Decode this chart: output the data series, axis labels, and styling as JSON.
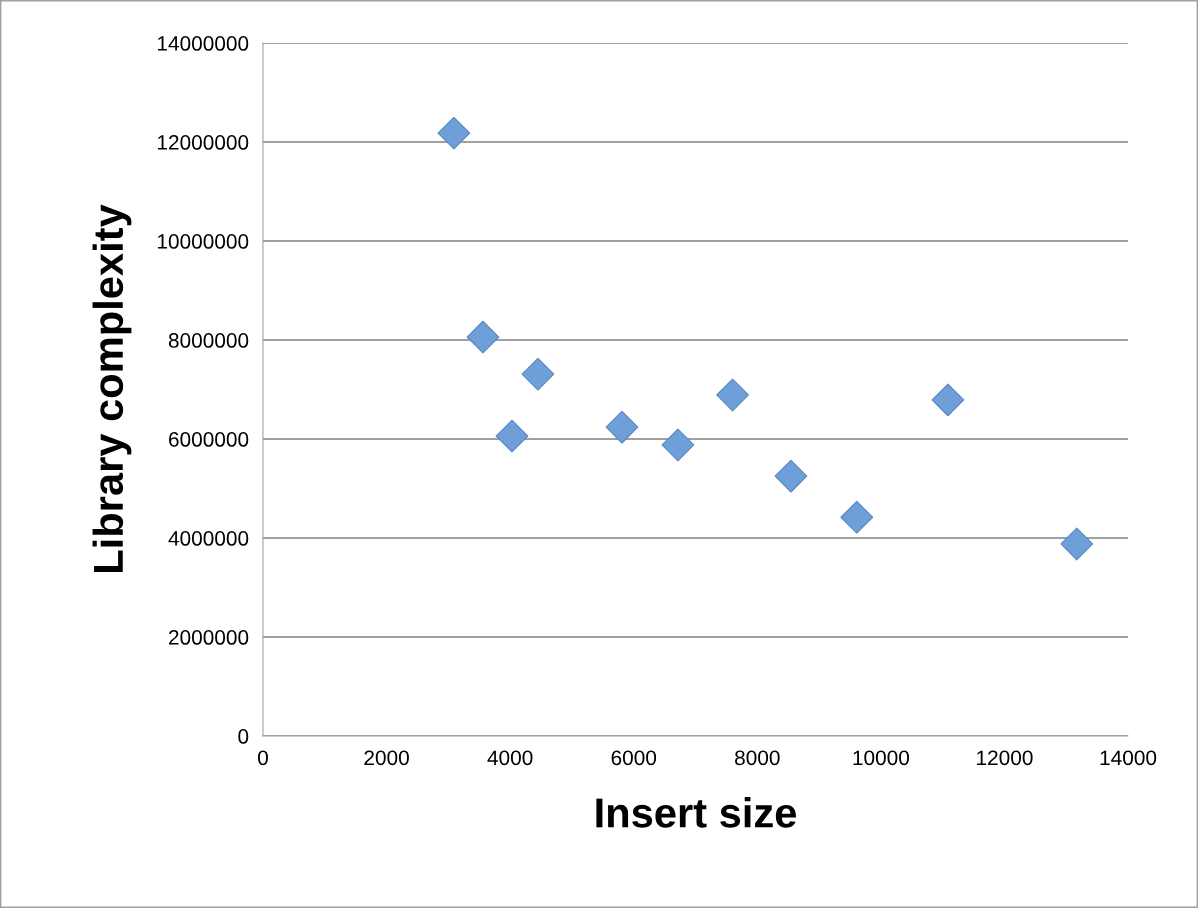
{
  "chart_data": {
    "type": "scatter",
    "xlabel": "Insert size",
    "ylabel": "Library complexity",
    "x": [
      3090,
      3560,
      4030,
      4450,
      5810,
      6715,
      7600,
      8545,
      9610,
      11085,
      13170
    ],
    "values": [
      12180000,
      8060000,
      6060000,
      7310000,
      6240000,
      5880000,
      6890000,
      5250000,
      4420000,
      6790000,
      3880000
    ],
    "color": "#6f9fd8",
    "marker": "diamond",
    "grid": "y",
    "legend": false,
    "xlim": [
      0,
      14000
    ],
    "xticks": [
      0,
      2000,
      4000,
      6000,
      8000,
      10000,
      12000,
      14000
    ],
    "ylim": [
      0,
      14000000
    ],
    "yticks": [
      0,
      2000000,
      4000000,
      6000000,
      8000000,
      10000000,
      12000000,
      14000000
    ]
  }
}
